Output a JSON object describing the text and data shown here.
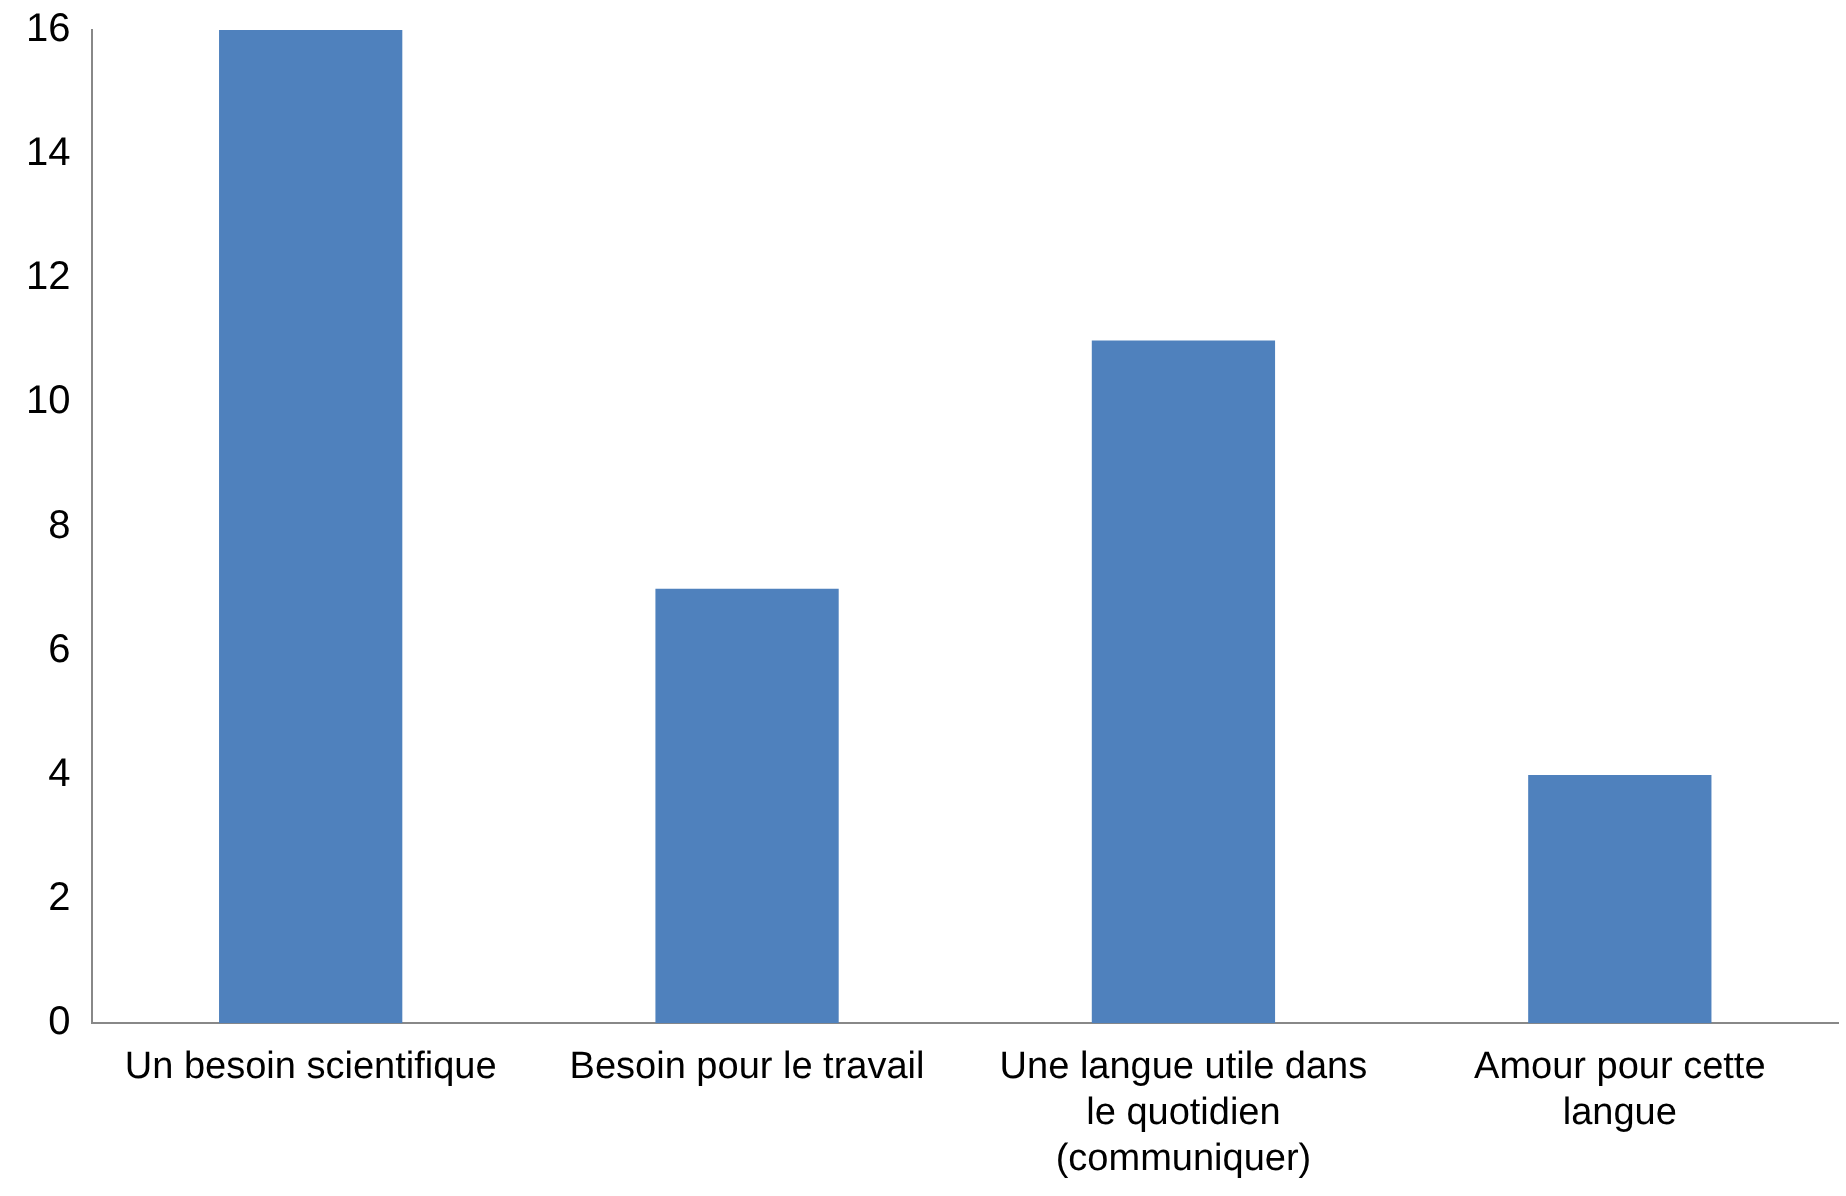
{
  "chart_data": {
    "type": "bar",
    "categories": [
      "Un besoin scientifique",
      "Besoin pour le travail",
      "Une langue utile dans le quotidien (communiquer)",
      "Amour pour cette langue"
    ],
    "values": [
      16,
      7,
      11,
      4
    ],
    "color": "#4f81bd",
    "ylim": [
      0,
      16
    ],
    "yticks": [
      0,
      2,
      4,
      6,
      8,
      10,
      12,
      14,
      16
    ],
    "grid": false,
    "legend": false
  }
}
